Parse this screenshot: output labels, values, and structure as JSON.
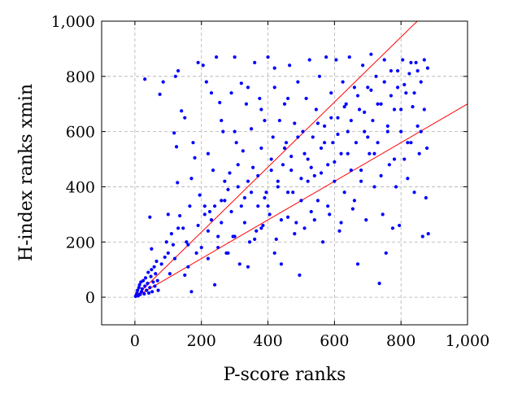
{
  "chart_data": {
    "type": "scatter",
    "title": "",
    "xlabel": "P-score ranks",
    "ylabel": "H-index ranks xmin",
    "xlim": [
      -100,
      1000
    ],
    "ylim": [
      -100,
      1000
    ],
    "xticks": [
      0,
      200,
      400,
      600,
      800,
      1000
    ],
    "yticks": [
      0,
      200,
      400,
      600,
      800,
      1000
    ],
    "xtick_labels": [
      "0",
      "200",
      "400",
      "600",
      "800",
      "1,000"
    ],
    "ytick_labels": [
      "0",
      "200",
      "400",
      "600",
      "800",
      "1,000"
    ],
    "grid": true,
    "legend": "none",
    "marker_color": "#0000ff",
    "line_color": "#ff0000",
    "reference_lines": [
      {
        "x": [
          0,
          1000
        ],
        "y": [
          0,
          1178
        ]
      },
      {
        "x": [
          0,
          1000
        ],
        "y": [
          0,
          700
        ]
      }
    ],
    "series": [
      {
        "values": [
          [
            2,
            3
          ],
          [
            4,
            8
          ],
          [
            6,
            15
          ],
          [
            8,
            25
          ],
          [
            10,
            5
          ],
          [
            12,
            35
          ],
          [
            14,
            45
          ],
          [
            16,
            10
          ],
          [
            18,
            55
          ],
          [
            20,
            20
          ],
          [
            22,
            30
          ],
          [
            25,
            60
          ],
          [
            28,
            12
          ],
          [
            30,
            40
          ],
          [
            32,
            70
          ],
          [
            35,
            25
          ],
          [
            38,
            50
          ],
          [
            40,
            90
          ],
          [
            42,
            15
          ],
          [
            45,
            35
          ],
          [
            48,
            75
          ],
          [
            50,
            100
          ],
          [
            52,
            20
          ],
          [
            55,
            55
          ],
          [
            58,
            110
          ],
          [
            60,
            40
          ],
          [
            62,
            85
          ],
          [
            65,
            130
          ],
          [
            68,
            60
          ],
          [
            70,
            25
          ],
          [
            30,
            790
          ],
          [
            45,
            290
          ],
          [
            50,
            175
          ],
          [
            75,
            735
          ],
          [
            85,
            780
          ],
          [
            80,
            120
          ],
          [
            90,
            145
          ],
          [
            95,
            200
          ],
          [
            100,
            160
          ],
          [
            105,
            85
          ],
          [
            110,
            230
          ],
          [
            115,
            190
          ],
          [
            118,
            595
          ],
          [
            120,
            140
          ],
          [
            122,
            800
          ],
          [
            125,
            545
          ],
          [
            128,
            415
          ],
          [
            130,
            820
          ],
          [
            135,
            295
          ],
          [
            140,
            675
          ],
          [
            145,
            250
          ],
          [
            150,
            650
          ],
          [
            155,
            200
          ],
          [
            160,
            110
          ],
          [
            165,
            330
          ],
          [
            170,
            430
          ],
          [
            175,
            560
          ],
          [
            180,
            505
          ],
          [
            185,
            160
          ],
          [
            190,
            850
          ],
          [
            195,
            370
          ],
          [
            200,
            180
          ],
          [
            205,
            840
          ],
          [
            210,
            300
          ],
          [
            215,
            780
          ],
          [
            220,
            240
          ],
          [
            225,
            310
          ],
          [
            230,
            740
          ],
          [
            235,
            460
          ],
          [
            240,
            330
          ],
          [
            245,
            870
          ],
          [
            250,
            180
          ],
          [
            255,
            705
          ],
          [
            260,
            350
          ],
          [
            265,
            600
          ],
          [
            270,
            420
          ],
          [
            275,
            160
          ],
          [
            280,
            390
          ],
          [
            285,
            450
          ],
          [
            290,
            740
          ],
          [
            295,
            220
          ],
          [
            300,
            870
          ],
          [
            305,
            560
          ],
          [
            310,
            480
          ],
          [
            315,
            120
          ],
          [
            320,
            775
          ],
          [
            325,
            530
          ],
          [
            330,
            360
          ],
          [
            335,
            700
          ],
          [
            340,
            420
          ],
          [
            345,
            200
          ],
          [
            350,
            610
          ],
          [
            355,
            470
          ],
          [
            360,
            850
          ],
          [
            365,
            240
          ],
          [
            370,
            330
          ],
          [
            375,
            720
          ],
          [
            380,
            540
          ],
          [
            385,
            260
          ],
          [
            390,
            640
          ],
          [
            395,
            380
          ],
          [
            400,
            870
          ],
          [
            405,
            300
          ],
          [
            410,
            460
          ],
          [
            415,
            580
          ],
          [
            420,
            830
          ],
          [
            425,
            210
          ],
          [
            430,
            400
          ],
          [
            435,
            640
          ],
          [
            440,
            120
          ],
          [
            445,
            480
          ],
          [
            450,
            700
          ],
          [
            455,
            560
          ],
          [
            460,
            290
          ],
          [
            465,
            840
          ],
          [
            470,
            510
          ],
          [
            475,
            380
          ],
          [
            480,
            630
          ],
          [
            485,
            270
          ],
          [
            490,
            780
          ],
          [
            495,
            80
          ],
          [
            500,
            430
          ],
          [
            505,
            600
          ],
          [
            510,
            250
          ],
          [
            515,
            720
          ],
          [
            520,
            500
          ],
          [
            525,
            860
          ],
          [
            530,
            310
          ],
          [
            535,
            580
          ],
          [
            540,
            440
          ],
          [
            545,
            680
          ],
          [
            550,
            350
          ],
          [
            555,
            800
          ],
          [
            560,
            540
          ],
          [
            565,
            200
          ],
          [
            570,
            620
          ],
          [
            575,
            870
          ],
          [
            580,
            480
          ],
          [
            585,
            300
          ],
          [
            590,
            740
          ],
          [
            595,
            560
          ],
          [
            600,
            420
          ],
          [
            605,
            860
          ],
          [
            610,
            650
          ],
          [
            615,
            240
          ],
          [
            620,
            520
          ],
          [
            625,
            780
          ],
          [
            630,
            380
          ],
          [
            635,
            700
          ],
          [
            640,
            600
          ],
          [
            645,
            870
          ],
          [
            650,
            460
          ],
          [
            655,
            320
          ],
          [
            660,
            760
          ],
          [
            665,
            560
          ],
          [
            670,
            120
          ],
          [
            675,
            680
          ],
          [
            680,
            420
          ],
          [
            685,
            840
          ],
          [
            690,
            600
          ],
          [
            695,
            280
          ],
          [
            700,
            760
          ],
          [
            705,
            520
          ],
          [
            710,
            880
          ],
          [
            715,
            640
          ],
          [
            720,
            400
          ],
          [
            725,
            800
          ],
          [
            730,
            560
          ],
          [
            735,
            50
          ],
          [
            740,
            700
          ],
          [
            745,
            300
          ],
          [
            750,
            860
          ],
          [
            755,
            160
          ],
          [
            760,
            620
          ],
          [
            765,
            480
          ],
          [
            770,
            820
          ],
          [
            775,
            250
          ],
          [
            780,
            680
          ],
          [
            785,
            400
          ],
          [
            790,
            760
          ],
          [
            795,
            260
          ],
          [
            800,
            600
          ],
          [
            805,
            860
          ],
          [
            810,
            500
          ],
          [
            815,
            740
          ],
          [
            820,
            430
          ],
          [
            825,
            810
          ],
          [
            830,
            560
          ],
          [
            835,
            690
          ],
          [
            840,
            380
          ],
          [
            845,
            850
          ],
          [
            850,
            620
          ],
          [
            855,
            520
          ],
          [
            860,
            780
          ],
          [
            865,
            220
          ],
          [
            870,
            680
          ],
          [
            875,
            360
          ],
          [
            880,
            830
          ],
          [
            878,
            540
          ],
          [
            882,
            230
          ],
          [
            150,
            80
          ],
          [
            170,
            20
          ],
          [
            220,
            140
          ],
          [
            240,
            45
          ],
          [
            260,
            270
          ],
          [
            280,
            160
          ],
          [
            300,
            220
          ],
          [
            320,
            330
          ],
          [
            340,
            110
          ],
          [
            360,
            210
          ],
          [
            380,
            250
          ],
          [
            400,
            330
          ],
          [
            420,
            160
          ],
          [
            440,
            280
          ],
          [
            460,
            380
          ],
          [
            480,
            230
          ],
          [
            500,
            350
          ],
          [
            520,
            420
          ],
          [
            540,
            280
          ],
          [
            560,
            450
          ],
          [
            580,
            330
          ],
          [
            600,
            490
          ],
          [
            620,
            270
          ],
          [
            640,
            520
          ],
          [
            660,
            350
          ],
          [
            680,
            460
          ],
          [
            700,
            580
          ],
          [
            720,
            520
          ],
          [
            740,
            440
          ],
          [
            760,
            600
          ],
          [
            780,
            500
          ],
          [
            800,
            680
          ],
          [
            820,
            560
          ],
          [
            840,
            740
          ],
          [
            860,
            600
          ],
          [
            100,
            300
          ],
          [
            130,
            250
          ],
          [
            160,
            190
          ],
          [
            190,
            260
          ],
          [
            210,
            330
          ],
          [
            230,
            280
          ],
          [
            250,
            220
          ],
          [
            270,
            350
          ],
          [
            290,
            310
          ],
          [
            310,
            400
          ],
          [
            330,
            270
          ],
          [
            350,
            380
          ],
          [
            370,
            440
          ],
          [
            390,
            360
          ],
          [
            410,
            500
          ],
          [
            430,
            420
          ],
          [
            450,
            540
          ],
          [
            470,
            460
          ],
          [
            490,
            580
          ],
          [
            510,
            520
          ],
          [
            530,
            470
          ],
          [
            550,
            630
          ],
          [
            570,
            560
          ],
          [
            590,
            650
          ],
          [
            610,
            590
          ],
          [
            630,
            690
          ],
          [
            650,
            640
          ],
          [
            670,
            730
          ],
          [
            690,
            670
          ],
          [
            710,
            750
          ],
          [
            730,
            700
          ],
          [
            750,
            780
          ],
          [
            770,
            730
          ],
          [
            790,
            820
          ],
          [
            810,
            770
          ],
          [
            830,
            850
          ],
          [
            850,
            820
          ],
          [
            870,
            860
          ],
          [
            220,
            520
          ],
          [
            260,
            640
          ],
          [
            300,
            600
          ],
          [
            340,
            760
          ],
          [
            380,
            680
          ],
          [
            420,
            760
          ],
          [
            460,
            720
          ]
        ]
      }
    ]
  }
}
